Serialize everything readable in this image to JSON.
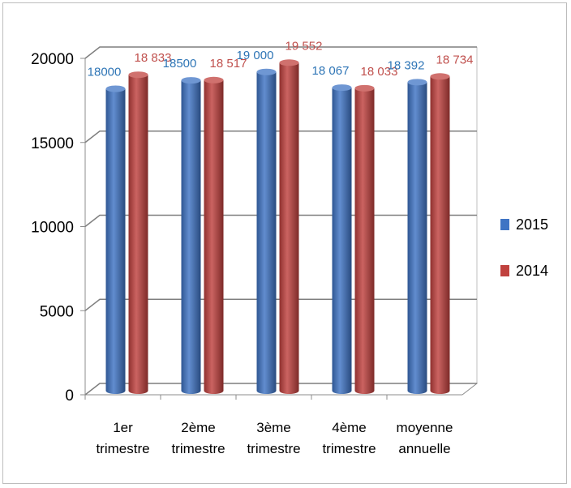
{
  "chart_data": {
    "type": "bar",
    "categories": [
      [
        "1er",
        "trimestre"
      ],
      [
        "2ème",
        "trimestre"
      ],
      [
        "3ème",
        "trimestre"
      ],
      [
        "4ème",
        "trimestre"
      ],
      [
        "moyenne",
        "annuelle"
      ]
    ],
    "series": [
      {
        "name": "2015",
        "color": "#3f74c4",
        "values": [
          18000,
          18500,
          19000,
          18067,
          18392
        ],
        "labels": [
          "18000",
          "18500",
          "19 000",
          "18 067",
          "18 392"
        ],
        "label_color": "#2e75b6"
      },
      {
        "name": "2014",
        "color": "#c0413e",
        "values": [
          18833,
          18517,
          19552,
          18033,
          18734
        ],
        "labels": [
          "18 833",
          "18 517",
          "19 552",
          "18 033",
          "18 734"
        ],
        "label_color": "#c0504d"
      }
    ],
    "yticks": [
      0,
      5000,
      10000,
      15000,
      20000
    ],
    "ylim": [
      0,
      20000
    ],
    "grid": true,
    "legend": "right",
    "style": "3d-cylinder"
  }
}
